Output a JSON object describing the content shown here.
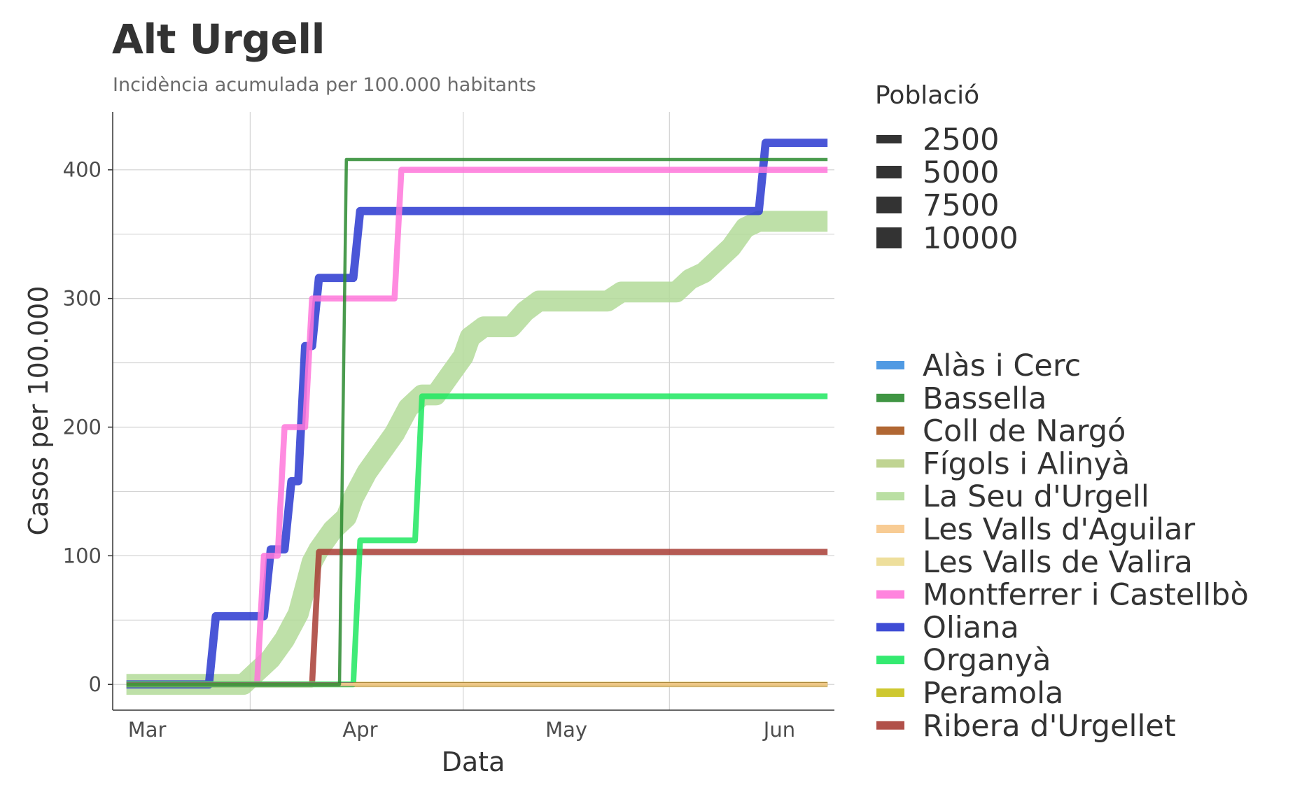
{
  "title": "Alt Urgell",
  "subtitle": "Incidència acumulada per 100.000 habitants",
  "chart_data": {
    "type": "line",
    "title": "Alt Urgell",
    "subtitle": "Incidència acumulada per 100.000 habitants",
    "xlabel": "Data",
    "ylabel": "Casos per 100.000",
    "x_ticks": [
      {
        "label": "Mar",
        "date": "2020-03-01"
      },
      {
        "label": "Apr",
        "date": "2020-04-01"
      },
      {
        "label": "May",
        "date": "2020-05-01"
      },
      {
        "label": "Jun",
        "date": "2020-06-01"
      }
    ],
    "xlim": [
      "2020-02-25",
      "2020-06-09"
    ],
    "y_ticks": [
      0,
      100,
      200,
      300,
      400
    ],
    "ylim": [
      -20,
      445
    ],
    "grid": true,
    "size_legend": {
      "title": "Població",
      "entries": [
        {
          "label": "2500",
          "value": 2500
        },
        {
          "label": "5000",
          "value": 5000
        },
        {
          "label": "7500",
          "value": 7500
        },
        {
          "label": "10000",
          "value": 10000
        }
      ]
    },
    "legend_position": "right",
    "series": [
      {
        "name": "Alàs i Cerc",
        "color": "#3d8fe0",
        "population": 380,
        "x": [
          "2020-02-27",
          "2020-06-08"
        ],
        "y": [
          0,
          0
        ]
      },
      {
        "name": "Bassella",
        "color": "#2a8a2f",
        "population": 250,
        "x": [
          "2020-02-27",
          "2020-03-29",
          "2020-03-30",
          "2020-06-08"
        ],
        "y": [
          0,
          0,
          408,
          408
        ]
      },
      {
        "name": "Coll de Nargó",
        "color": "#a8561d",
        "population": 550,
        "x": [
          "2020-02-27",
          "2020-06-08"
        ],
        "y": [
          0,
          0
        ]
      },
      {
        "name": "Fígols i Alinyà",
        "color": "#b9cf86",
        "population": 280,
        "x": [
          "2020-02-27",
          "2020-06-08"
        ],
        "y": [
          0,
          0
        ]
      },
      {
        "name": "La Seu d'Urgell",
        "color": "#b3db99",
        "population": 12200,
        "x": [
          "2020-02-27",
          "2020-03-15",
          "2020-03-17",
          "2020-03-19",
          "2020-03-21",
          "2020-03-23",
          "2020-03-25",
          "2020-03-26",
          "2020-03-28",
          "2020-03-30",
          "2020-03-31",
          "2020-04-02",
          "2020-04-04",
          "2020-04-06",
          "2020-04-08",
          "2020-04-10",
          "2020-04-12",
          "2020-04-14",
          "2020-04-16",
          "2020-04-17",
          "2020-04-19",
          "2020-04-23",
          "2020-04-25",
          "2020-04-27",
          "2020-05-07",
          "2020-05-09",
          "2020-05-17",
          "2020-05-19",
          "2020-05-21",
          "2020-05-23",
          "2020-05-25",
          "2020-05-27",
          "2020-05-29",
          "2020-06-08"
        ],
        "y": [
          0,
          0,
          10,
          20,
          35,
          55,
          95,
          105,
          120,
          130,
          145,
          165,
          180,
          195,
          215,
          225,
          225,
          240,
          255,
          270,
          278,
          278,
          290,
          298,
          298,
          305,
          305,
          315,
          320,
          330,
          340,
          355,
          360,
          360
        ]
      },
      {
        "name": "Les Valls d'Aguilar",
        "color": "#f7c688",
        "population": 270,
        "x": [
          "2020-02-27",
          "2020-06-08"
        ],
        "y": [
          0,
          0
        ]
      },
      {
        "name": "Les Valls de Valira",
        "color": "#ecdc91",
        "population": 900,
        "x": [
          "2020-02-27",
          "2020-06-08"
        ],
        "y": [
          0,
          0
        ]
      },
      {
        "name": "Montferrer i Castellbò",
        "color": "#ff77da",
        "population": 1000,
        "x": [
          "2020-02-27",
          "2020-03-17",
          "2020-03-18",
          "2020-03-20",
          "2020-03-21",
          "2020-03-24",
          "2020-03-25",
          "2020-04-06",
          "2020-04-07",
          "2020-06-08"
        ],
        "y": [
          0,
          0,
          100,
          100,
          200,
          200,
          300,
          300,
          400,
          400
        ]
      },
      {
        "name": "Oliana",
        "color": "#2a38d0",
        "population": 1900,
        "x": [
          "2020-02-27",
          "2020-03-10",
          "2020-03-11",
          "2020-03-18",
          "2020-03-19",
          "2020-03-21",
          "2020-03-22",
          "2020-03-23",
          "2020-03-24",
          "2020-03-25",
          "2020-03-26",
          "2020-03-27",
          "2020-03-28",
          "2020-03-31",
          "2020-04-01",
          "2020-05-29",
          "2020-05-30",
          "2020-06-08"
        ],
        "y": [
          0,
          0,
          53,
          53,
          105,
          105,
          158,
          158,
          263,
          263,
          316,
          316,
          316,
          316,
          368,
          368,
          421,
          421
        ]
      },
      {
        "name": "Organyà",
        "color": "#1ee860",
        "population": 900,
        "x": [
          "2020-02-27",
          "2020-03-31",
          "2020-04-01",
          "2020-04-09",
          "2020-04-10",
          "2020-06-08"
        ],
        "y": [
          0,
          0,
          112,
          112,
          224,
          224
        ]
      },
      {
        "name": "Peramola",
        "color": "#c9c21a",
        "population": 380,
        "x": [
          "2020-03-31",
          "2020-06-08"
        ],
        "y": [
          0,
          0
        ]
      },
      {
        "name": "Ribera d'Urgellet",
        "color": "#a83d35",
        "population": 1000,
        "x": [
          "2020-02-27",
          "2020-03-25",
          "2020-03-26",
          "2020-06-08"
        ],
        "y": [
          0,
          0,
          103,
          103
        ]
      }
    ]
  }
}
